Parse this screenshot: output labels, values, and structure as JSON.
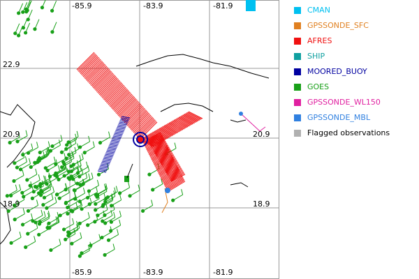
{
  "map": {
    "lon_labels_top": [
      "-85.9",
      "-83.9",
      "-81.9"
    ],
    "lon_labels_bottom": [
      "-85.9",
      "-83.9",
      "-81.9"
    ],
    "lat_labels_left": [
      "22.9",
      "20.9",
      "18.9"
    ],
    "lat_labels_right": [
      "20.9",
      "18.9"
    ]
  },
  "legend": [
    {
      "label": "CMAN",
      "color": "#00c0f0"
    },
    {
      "label": "GPSSONDE_SFC",
      "color": "#e08020"
    },
    {
      "label": "AFRES",
      "color": "#f01010"
    },
    {
      "label": "SHIP",
      "color": "#10a0a0"
    },
    {
      "label": "MOORED_BUOY",
      "color": "#0000a0"
    },
    {
      "label": "GOES",
      "color": "#18a018"
    },
    {
      "label": "GPSSONDE_WL150",
      "color": "#e020a0"
    },
    {
      "label": "GPSSONDE_MBL",
      "color": "#3080e0"
    },
    {
      "label": "Flagged observations",
      "color": "#b0b0b0"
    }
  ]
}
